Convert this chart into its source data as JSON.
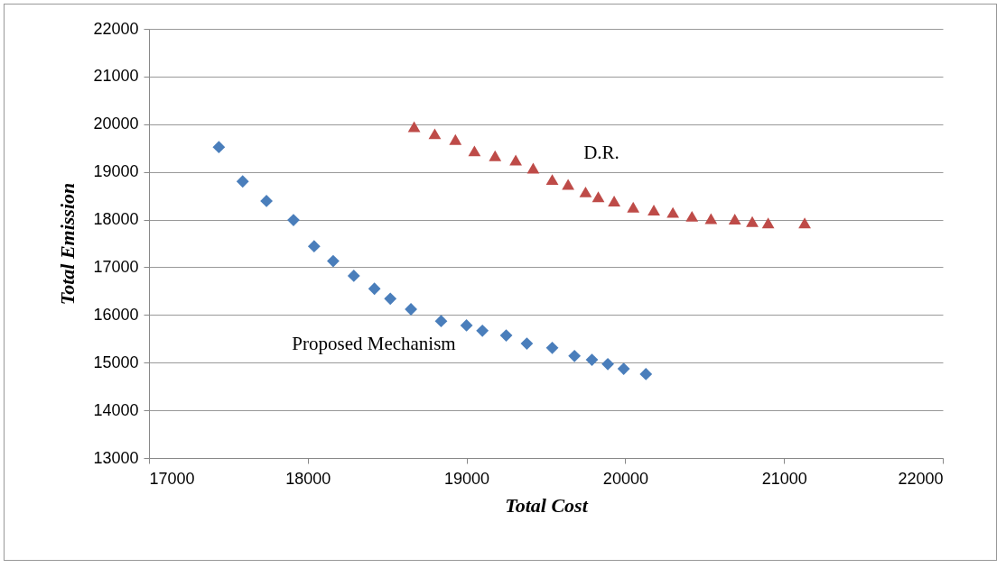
{
  "chart_data": {
    "type": "scatter",
    "xlabel": "Total Cost",
    "ylabel": "Total Emission",
    "xlim": [
      17000,
      22000
    ],
    "xticks": [
      17000,
      18000,
      19000,
      20000,
      21000,
      22000
    ],
    "ylim": [
      13000,
      22000
    ],
    "yticks": [
      13000,
      14000,
      15000,
      16000,
      17000,
      18000,
      19000,
      20000,
      21000,
      22000
    ],
    "grid": "y",
    "series": [
      {
        "name": "Proposed Mechanism",
        "color": "#4a7ebb",
        "marker": "diamond",
        "x": [
          17440,
          17590,
          17740,
          17910,
          18040,
          18160,
          18290,
          18420,
          18520,
          18650,
          18840,
          19000,
          19100,
          19250,
          19380,
          19540,
          19680,
          19790,
          19890,
          19990,
          20130
        ],
        "values": [
          19520,
          18800,
          18390,
          17990,
          17440,
          17130,
          16820,
          16550,
          16340,
          16120,
          15870,
          15780,
          15670,
          15570,
          15400,
          15310,
          15140,
          15060,
          14970,
          14870,
          14760
        ]
      },
      {
        "name": "D.R.",
        "color": "#be4b48",
        "marker": "triangle",
        "x": [
          18670,
          18800,
          18930,
          19050,
          19180,
          19310,
          19420,
          19540,
          19640,
          19750,
          19830,
          19930,
          20050,
          20180,
          20300,
          20420,
          20540,
          20690,
          20800,
          20900,
          21130
        ],
        "values": [
          19950,
          19800,
          19680,
          19440,
          19340,
          19250,
          19080,
          18840,
          18740,
          18580,
          18480,
          18390,
          18260,
          18200,
          18150,
          18070,
          18020,
          18010,
          17960,
          17930,
          17930
        ]
      }
    ]
  }
}
